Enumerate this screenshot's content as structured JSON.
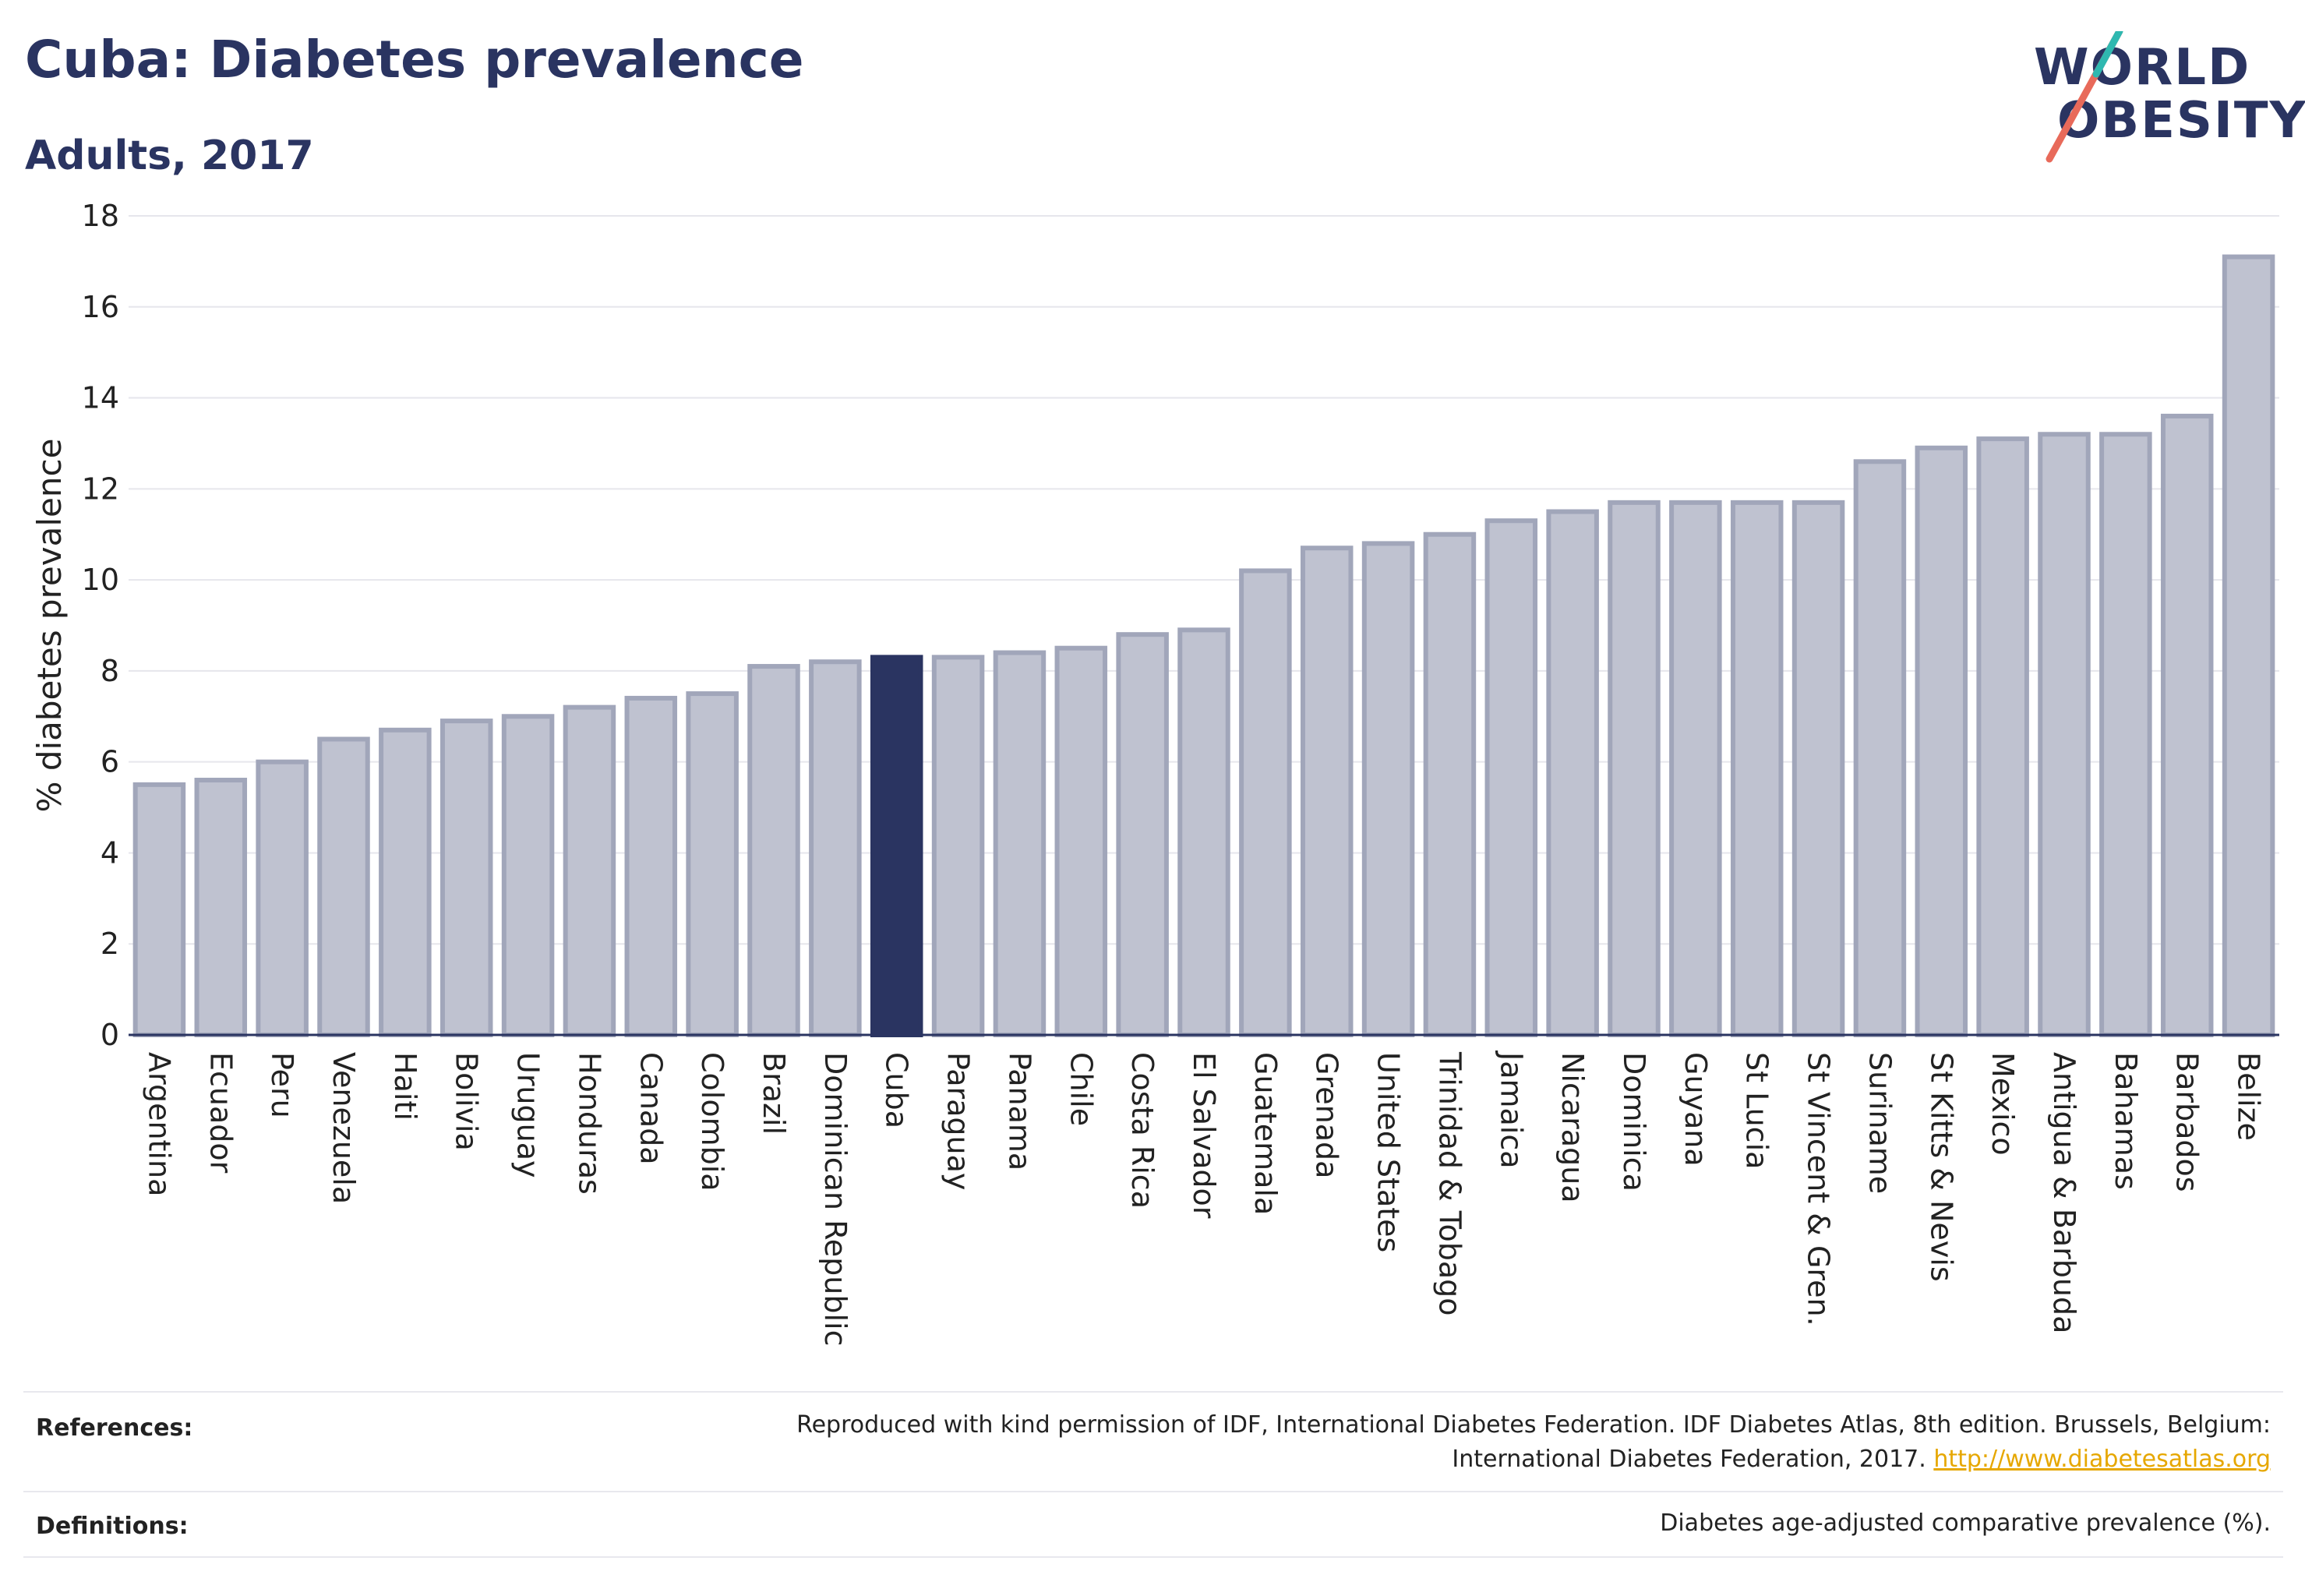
{
  "title": "Cuba: Diabetes prevalence",
  "subtitle": "Adults, 2017",
  "logo": {
    "line1": "WORLD",
    "line2": "OBESITY"
  },
  "colors": {
    "bar": "#bfc2d0",
    "bar_border": "#a1a6ba",
    "highlight": "#2a3461",
    "grid": "#e6e6ec",
    "axis": "#2a3461"
  },
  "chart_data": {
    "type": "bar",
    "ylabel": "% diabetes prevalence",
    "ylim": [
      0,
      18
    ],
    "yticks": [
      0,
      2,
      4,
      6,
      8,
      10,
      12,
      14,
      16,
      18
    ],
    "highlight": "Cuba",
    "categories": [
      "Argentina",
      "Ecuador",
      "Peru",
      "Venezuela",
      "Haiti",
      "Bolivia",
      "Uruguay",
      "Honduras",
      "Canada",
      "Colombia",
      "Brazil",
      "Dominican Republic",
      "Cuba",
      "Paraguay",
      "Panama",
      "Chile",
      "Costa Rica",
      "El Salvador",
      "Guatemala",
      "Grenada",
      "United States",
      "Trinidad & Tobago",
      "Jamaica",
      "Nicaragua",
      "Dominica",
      "Guyana",
      "St Lucia",
      "St Vincent & Gren.",
      "Suriname",
      "St Kitts & Nevis",
      "Mexico",
      "Antigua & Barbuda",
      "Bahamas",
      "Barbados",
      "Belize"
    ],
    "values": [
      5.5,
      5.6,
      6.0,
      6.5,
      6.7,
      6.9,
      7.0,
      7.2,
      7.4,
      7.5,
      8.1,
      8.2,
      8.3,
      8.3,
      8.4,
      8.5,
      8.8,
      8.9,
      10.2,
      10.7,
      10.8,
      11.0,
      11.3,
      11.5,
      11.7,
      11.7,
      11.7,
      11.7,
      12.6,
      12.9,
      13.1,
      13.2,
      13.2,
      13.6,
      17.1
    ]
  },
  "footer": {
    "references_label": "References:",
    "references_text_1": "Reproduced with kind permission of IDF, International Diabetes Federation. IDF Diabetes Atlas, 8th edition. Brussels, Belgium:",
    "references_text_2": "International Diabetes Federation, 2017.",
    "references_link": "http://www.diabetesatlas.org",
    "definitions_label": "Definitions:",
    "definitions_text": "Diabetes age-adjusted comparative prevalence (%)."
  }
}
